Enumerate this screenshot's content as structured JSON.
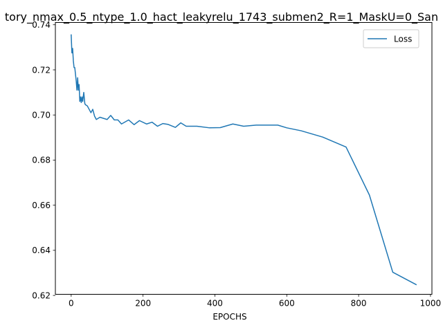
{
  "chart_data": {
    "type": "line",
    "title": "tory_nmax_0.5_ntype_1.0_hact_leakyrelu_1743_submen2_R=1_MaskU=0_San",
    "xlabel": "EPOCHS",
    "ylabel": "",
    "xlim": [
      -44,
      1004
    ],
    "ylim": [
      0.6205,
      0.741
    ],
    "xticks": [
      0,
      200,
      400,
      600,
      800,
      1000
    ],
    "xtick_labels": [
      "0",
      "200",
      "400",
      "600",
      "800",
      "1000"
    ],
    "yticks": [
      0.62,
      0.64,
      0.66,
      0.68,
      0.7,
      0.72,
      0.74
    ],
    "ytick_labels": [
      "0.62",
      "0.64",
      "0.66",
      "0.68",
      "0.70",
      "0.72",
      "0.74"
    ],
    "grid": false,
    "legend_position": "upper right",
    "series": [
      {
        "name": "Loss",
        "color": "#1f77b4",
        "x": [
          0,
          2,
          4,
          6,
          8,
          10,
          12,
          14,
          16,
          18,
          20,
          22,
          24,
          26,
          28,
          30,
          32,
          35,
          38,
          40,
          45,
          50,
          55,
          60,
          65,
          70,
          80,
          100,
          110,
          120,
          130,
          140,
          160,
          175,
          190,
          210,
          225,
          240,
          255,
          270,
          290,
          305,
          320,
          350,
          385,
          415,
          450,
          480,
          515,
          545,
          575,
          600,
          640,
          700,
          765,
          830,
          895,
          960
        ],
        "y": [
          0.7355,
          0.7275,
          0.7295,
          0.724,
          0.721,
          0.721,
          0.718,
          0.715,
          0.711,
          0.7165,
          0.711,
          0.7135,
          0.706,
          0.708,
          0.7055,
          0.708,
          0.706,
          0.71,
          0.705,
          0.7045,
          0.704,
          0.7025,
          0.701,
          0.7025,
          0.6995,
          0.698,
          0.699,
          0.698,
          0.6998,
          0.6978,
          0.6978,
          0.696,
          0.6978,
          0.6957,
          0.6975,
          0.696,
          0.6968,
          0.695,
          0.6962,
          0.6958,
          0.6945,
          0.6965,
          0.695,
          0.695,
          0.6943,
          0.6944,
          0.696,
          0.695,
          0.6955,
          0.6955,
          0.6955,
          0.6943,
          0.693,
          0.6902,
          0.6858,
          0.6645,
          0.6303,
          0.6248
        ]
      }
    ]
  }
}
